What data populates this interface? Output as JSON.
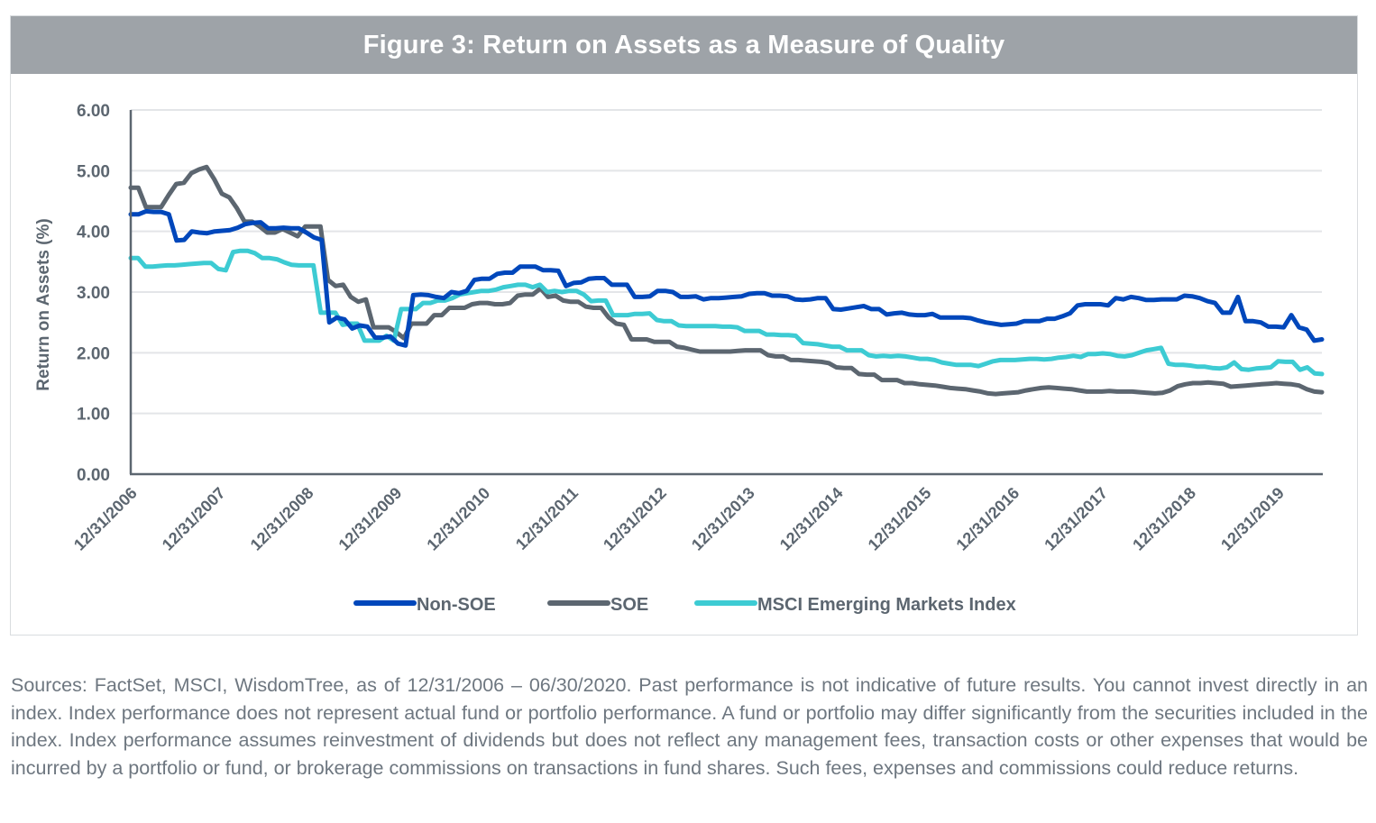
{
  "chart_data": {
    "type": "line",
    "title": "Figure 3: Return on Assets as a Measure of Quality",
    "xlabel": "",
    "ylabel": "Return on Assets (%)",
    "ylim": [
      0,
      6
    ],
    "yticks": [
      "0.00",
      "1.00",
      "2.00",
      "3.00",
      "4.00",
      "5.00",
      "6.00"
    ],
    "ytick_values": [
      0,
      1,
      2,
      3,
      4,
      5,
      6
    ],
    "xticks": [
      "12/31/2006",
      "12/31/2007",
      "12/31/2008",
      "12/31/2009",
      "12/31/2010",
      "12/31/2011",
      "12/31/2012",
      "12/31/2013",
      "12/31/2014",
      "12/31/2015",
      "12/31/2016",
      "12/31/2017",
      "12/31/2018",
      "12/31/2019"
    ],
    "x_range": [
      "12/31/2006",
      "06/30/2020"
    ],
    "x_frequency": "monthly",
    "grid": "horizontal",
    "legend_position": "bottom",
    "series": [
      {
        "name": "Non-SOE",
        "color": "#0047bb",
        "values": [
          4.28,
          4.28,
          4.33,
          4.32,
          4.32,
          4.28,
          3.85,
          3.86,
          4.0,
          3.98,
          3.97,
          4.0,
          4.01,
          4.02,
          4.06,
          4.12,
          4.14,
          4.15,
          4.05,
          4.05,
          4.06,
          4.05,
          4.05,
          3.98,
          3.9,
          3.86,
          2.5,
          2.58,
          2.55,
          2.4,
          2.45,
          2.43,
          2.25,
          2.25,
          2.27,
          2.15,
          2.12,
          2.95,
          2.96,
          2.95,
          2.92,
          2.9,
          3.0,
          2.98,
          3.02,
          3.2,
          3.22,
          3.22,
          3.3,
          3.32,
          3.32,
          3.42,
          3.42,
          3.42,
          3.36,
          3.36,
          3.35,
          3.1,
          3.15,
          3.16,
          3.22,
          3.23,
          3.23,
          3.12,
          3.12,
          3.12,
          2.92,
          2.92,
          2.93,
          3.02,
          3.02,
          3.0,
          2.92,
          2.92,
          2.93,
          2.88,
          2.9,
          2.9,
          2.91,
          2.92,
          2.93,
          2.97,
          2.98,
          2.98,
          2.94,
          2.94,
          2.93,
          2.88,
          2.87,
          2.88,
          2.9,
          2.9,
          2.72,
          2.71,
          2.73,
          2.75,
          2.77,
          2.72,
          2.72,
          2.63,
          2.65,
          2.66,
          2.63,
          2.62,
          2.62,
          2.64,
          2.58,
          2.58,
          2.58,
          2.58,
          2.57,
          2.53,
          2.5,
          2.48,
          2.46,
          2.47,
          2.48,
          2.52,
          2.52,
          2.52,
          2.56,
          2.56,
          2.6,
          2.65,
          2.78,
          2.8,
          2.8,
          2.8,
          2.78,
          2.9,
          2.88,
          2.92,
          2.9,
          2.87,
          2.87,
          2.88,
          2.88,
          2.88,
          2.94,
          2.93,
          2.9,
          2.85,
          2.82,
          2.66,
          2.66,
          2.92,
          2.52,
          2.52,
          2.5,
          2.43,
          2.43,
          2.42,
          2.62,
          2.42,
          2.38,
          2.2,
          2.22
        ]
      },
      {
        "name": "SOE",
        "color": "#5c6670",
        "values": [
          4.72,
          4.72,
          4.4,
          4.4,
          4.4,
          4.6,
          4.78,
          4.8,
          4.96,
          5.02,
          5.06,
          4.86,
          4.62,
          4.56,
          4.38,
          4.16,
          4.16,
          4.08,
          3.98,
          3.98,
          4.04,
          3.98,
          3.92,
          4.08,
          4.08,
          4.08,
          3.2,
          3.1,
          3.12,
          2.92,
          2.84,
          2.88,
          2.42,
          2.42,
          2.42,
          2.34,
          2.24,
          2.48,
          2.48,
          2.48,
          2.62,
          2.62,
          2.74,
          2.74,
          2.74,
          2.8,
          2.82,
          2.82,
          2.8,
          2.8,
          2.82,
          2.94,
          2.96,
          2.96,
          3.06,
          2.92,
          2.94,
          2.86,
          2.84,
          2.84,
          2.76,
          2.74,
          2.74,
          2.58,
          2.48,
          2.46,
          2.22,
          2.22,
          2.22,
          2.18,
          2.18,
          2.18,
          2.1,
          2.08,
          2.05,
          2.02,
          2.02,
          2.02,
          2.02,
          2.02,
          2.03,
          2.04,
          2.04,
          2.04,
          1.96,
          1.94,
          1.94,
          1.88,
          1.88,
          1.87,
          1.86,
          1.85,
          1.83,
          1.76,
          1.75,
          1.75,
          1.65,
          1.64,
          1.64,
          1.55,
          1.55,
          1.55,
          1.5,
          1.5,
          1.48,
          1.47,
          1.46,
          1.44,
          1.42,
          1.41,
          1.4,
          1.38,
          1.36,
          1.33,
          1.32,
          1.33,
          1.34,
          1.35,
          1.38,
          1.4,
          1.42,
          1.43,
          1.42,
          1.41,
          1.4,
          1.38,
          1.36,
          1.36,
          1.36,
          1.37,
          1.36,
          1.36,
          1.36,
          1.35,
          1.34,
          1.33,
          1.34,
          1.38,
          1.45,
          1.48,
          1.5,
          1.5,
          1.51,
          1.5,
          1.49,
          1.44,
          1.45,
          1.46,
          1.47,
          1.48,
          1.49,
          1.5,
          1.49,
          1.48,
          1.46,
          1.4,
          1.36,
          1.35
        ]
      },
      {
        "name": "MSCI Emerging Markets Index",
        "color": "#3dcbd3",
        "values": [
          3.56,
          3.56,
          3.42,
          3.42,
          3.43,
          3.44,
          3.44,
          3.45,
          3.46,
          3.47,
          3.48,
          3.48,
          3.38,
          3.36,
          3.66,
          3.68,
          3.68,
          3.64,
          3.56,
          3.56,
          3.54,
          3.49,
          3.45,
          3.44,
          3.44,
          3.44,
          2.66,
          2.66,
          2.66,
          2.46,
          2.48,
          2.48,
          2.2,
          2.2,
          2.2,
          2.28,
          2.2,
          2.72,
          2.72,
          2.72,
          2.82,
          2.82,
          2.86,
          2.86,
          2.9,
          2.96,
          2.98,
          3.0,
          3.02,
          3.02,
          3.04,
          3.08,
          3.1,
          3.12,
          3.12,
          3.08,
          3.12,
          3.0,
          3.02,
          3.0,
          3.02,
          3.02,
          2.96,
          2.85,
          2.86,
          2.86,
          2.62,
          2.62,
          2.62,
          2.64,
          2.64,
          2.65,
          2.54,
          2.52,
          2.52,
          2.45,
          2.44,
          2.44,
          2.44,
          2.44,
          2.44,
          2.43,
          2.43,
          2.42,
          2.36,
          2.36,
          2.36,
          2.3,
          2.3,
          2.29,
          2.29,
          2.28,
          2.16,
          2.15,
          2.14,
          2.12,
          2.1,
          2.1,
          2.04,
          2.04,
          2.04,
          1.96,
          1.94,
          1.95,
          1.94,
          1.95,
          1.94,
          1.92,
          1.9,
          1.9,
          1.88,
          1.84,
          1.82,
          1.8,
          1.8,
          1.8,
          1.78,
          1.82,
          1.86,
          1.88,
          1.88,
          1.88,
          1.89,
          1.9,
          1.9,
          1.89,
          1.9,
          1.92,
          1.93,
          1.95,
          1.93,
          1.98,
          1.98,
          1.99,
          1.98,
          1.95,
          1.94,
          1.96,
          2.0,
          2.04,
          2.06,
          2.08,
          1.82,
          1.8,
          1.8,
          1.79,
          1.77,
          1.77,
          1.75,
          1.74,
          1.76,
          1.84,
          1.73,
          1.72,
          1.74,
          1.75,
          1.76,
          1.86,
          1.85,
          1.85,
          1.72,
          1.76,
          1.66,
          1.65
        ]
      }
    ]
  },
  "footnote": "Sources: FactSet, MSCI, WisdomTree, as of 12/31/2006 – 06/30/2020. Past performance is not indicative of future results. You cannot invest directly in an index. Index performance does not represent actual fund or portfolio performance. A fund or portfolio may differ significantly from the securities included in the index. Index performance assumes reinvestment of dividends but does not reflect any management fees, transaction costs or other expenses that would be incurred by a portfolio or fund, or brokerage commissions on transactions in fund shares. Such fees, expenses and commissions could reduce returns."
}
